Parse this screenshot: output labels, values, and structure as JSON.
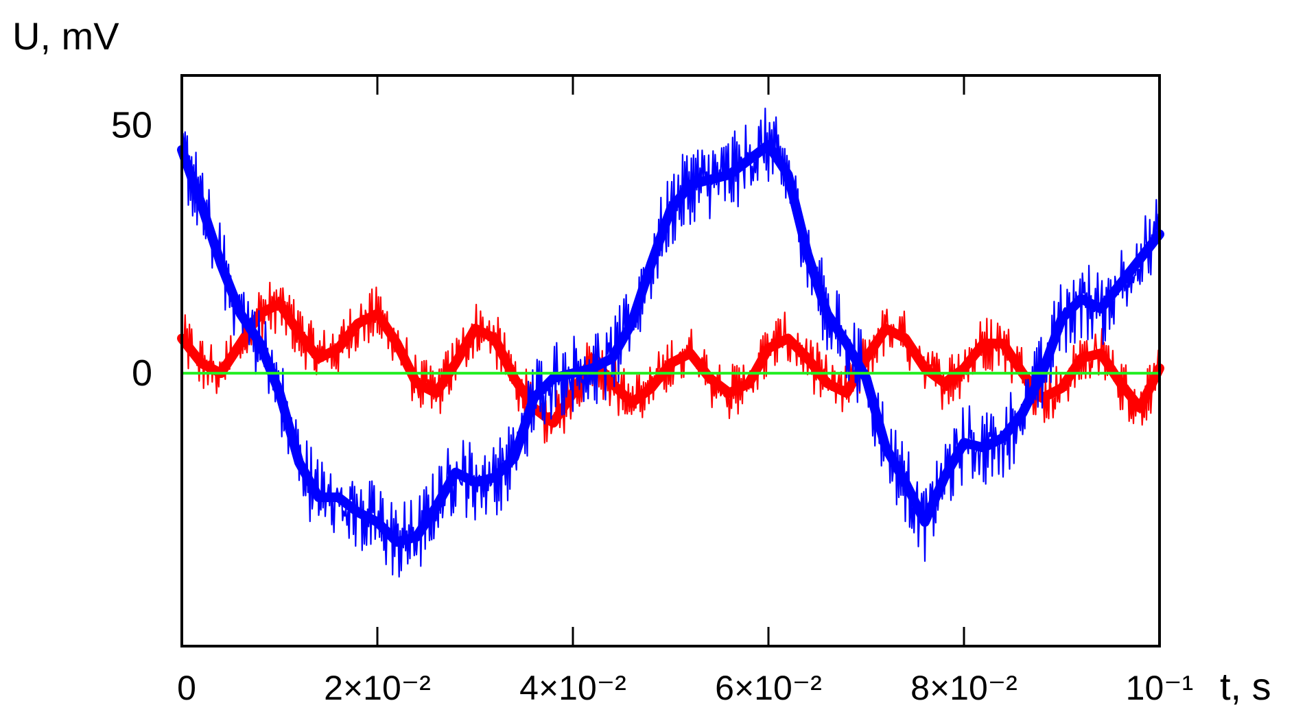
{
  "chart_data": {
    "type": "line",
    "title": "",
    "ylabel": "U, mV",
    "xlabel": "t, s",
    "xlim": [
      0,
      0.1
    ],
    "ylim": [
      -55,
      60
    ],
    "grid": false,
    "x_ticks": [
      {
        "value": 0,
        "label": "0"
      },
      {
        "value": 0.02,
        "label": "2×10⁻²"
      },
      {
        "value": 0.04,
        "label": "4×10⁻²"
      },
      {
        "value": 0.06,
        "label": "6×10⁻²"
      },
      {
        "value": 0.08,
        "label": "8×10⁻²"
      },
      {
        "value": 0.1,
        "label": "10⁻¹"
      }
    ],
    "y_ticks": [
      {
        "value": 50,
        "label": "50"
      },
      {
        "value": 0,
        "label": "0"
      }
    ],
    "series": [
      {
        "color": "#ff0000",
        "noise_amplitude": 3.5,
        "x": [
          0,
          0.002,
          0.004,
          0.006,
          0.008,
          0.01,
          0.012,
          0.014,
          0.016,
          0.018,
          0.02,
          0.022,
          0.024,
          0.026,
          0.028,
          0.03,
          0.032,
          0.034,
          0.036,
          0.038,
          0.04,
          0.042,
          0.044,
          0.046,
          0.048,
          0.05,
          0.052,
          0.054,
          0.056,
          0.058,
          0.06,
          0.062,
          0.064,
          0.066,
          0.068,
          0.07,
          0.072,
          0.074,
          0.076,
          0.078,
          0.08,
          0.082,
          0.084,
          0.086,
          0.088,
          0.09,
          0.092,
          0.094,
          0.096,
          0.098,
          0.1
        ],
        "values": [
          7,
          2,
          0,
          6,
          12,
          14,
          8,
          3,
          5,
          10,
          12,
          6,
          -2,
          -4,
          2,
          9,
          7,
          -1,
          -7,
          -10,
          -4,
          3,
          -2,
          -6,
          -3,
          2,
          4,
          -1,
          -4,
          -2,
          5,
          7,
          3,
          -2,
          -4,
          3,
          9,
          7,
          1,
          -2,
          1,
          6,
          6,
          0,
          -5,
          -3,
          3,
          4,
          -2,
          -7,
          1
        ]
      },
      {
        "color": "#0000ff",
        "noise_amplitude": 5,
        "x": [
          0,
          0.002,
          0.004,
          0.006,
          0.008,
          0.01,
          0.012,
          0.014,
          0.016,
          0.018,
          0.02,
          0.022,
          0.024,
          0.026,
          0.028,
          0.03,
          0.032,
          0.034,
          0.036,
          0.038,
          0.04,
          0.042,
          0.044,
          0.046,
          0.048,
          0.05,
          0.052,
          0.054,
          0.056,
          0.058,
          0.06,
          0.062,
          0.064,
          0.066,
          0.068,
          0.07,
          0.072,
          0.074,
          0.076,
          0.078,
          0.08,
          0.082,
          0.084,
          0.086,
          0.088,
          0.09,
          0.092,
          0.094,
          0.096,
          0.098,
          0.1
        ],
        "values": [
          45,
          34,
          22,
          12,
          6,
          -4,
          -18,
          -25,
          -25,
          -28,
          -30,
          -34,
          -33,
          -27,
          -20,
          -22,
          -21,
          -17,
          -5,
          -1,
          0,
          1,
          3,
          10,
          22,
          33,
          38,
          39,
          40,
          43,
          46,
          40,
          24,
          12,
          6,
          -1,
          -15,
          -22,
          -30,
          -21,
          -14,
          -15,
          -13,
          -8,
          0,
          11,
          15,
          13,
          18,
          23,
          28
        ]
      },
      {
        "color": "#22ee22",
        "noise_amplitude": 0,
        "x": [
          0,
          0.1
        ],
        "values": [
          0,
          0
        ]
      }
    ]
  }
}
